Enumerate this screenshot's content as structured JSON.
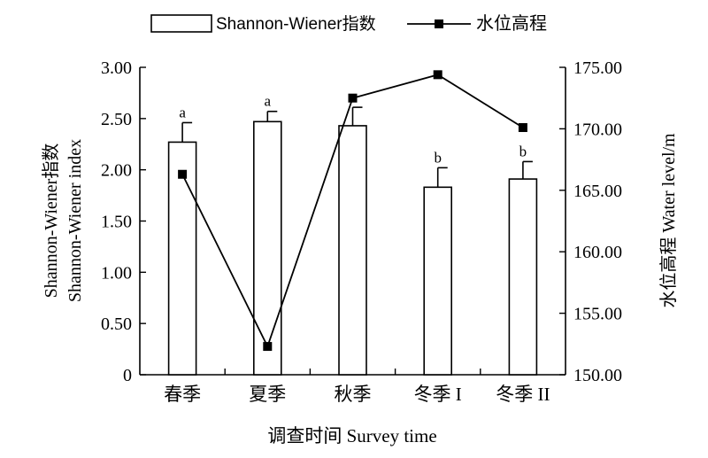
{
  "chart_data": {
    "type": "bar+line",
    "categories": [
      "春季",
      "夏季",
      "秋季",
      "冬季 I",
      "冬季 II"
    ],
    "series": [
      {
        "name": "Shannon-Wiener指数",
        "type": "bar",
        "axis": "left",
        "values": [
          2.27,
          2.47,
          2.43,
          1.83,
          1.91
        ],
        "errors": [
          0.19,
          0.1,
          0.18,
          0.19,
          0.17
        ],
        "significance": [
          "a",
          "a",
          "a",
          "b",
          "b"
        ]
      },
      {
        "name": "水位高程",
        "type": "line",
        "axis": "right",
        "values": [
          166.3,
          152.3,
          172.5,
          174.4,
          170.1
        ]
      }
    ],
    "xlabel": "调查时间 Survey time",
    "ylabel_left_line1": "Shannon-Wiener指数",
    "ylabel_left_line2": "Shannon-Wiener index",
    "ylabel_right": "水位高程 Water level/m",
    "ylim_left": [
      0,
      3
    ],
    "yticks_left": [
      "0",
      "0.50",
      "1.00",
      "1.50",
      "2.00",
      "2.50",
      "3.00"
    ],
    "ylim_right": [
      150,
      175
    ],
    "yticks_right": [
      "150.00",
      "155.00",
      "160.00",
      "165.00",
      "170.00",
      "175.00"
    ],
    "legend_position": "top",
    "grid": false,
    "colors": {
      "bar_fill": "#ffffff",
      "stroke": "#000000",
      "line": "#000000"
    }
  }
}
